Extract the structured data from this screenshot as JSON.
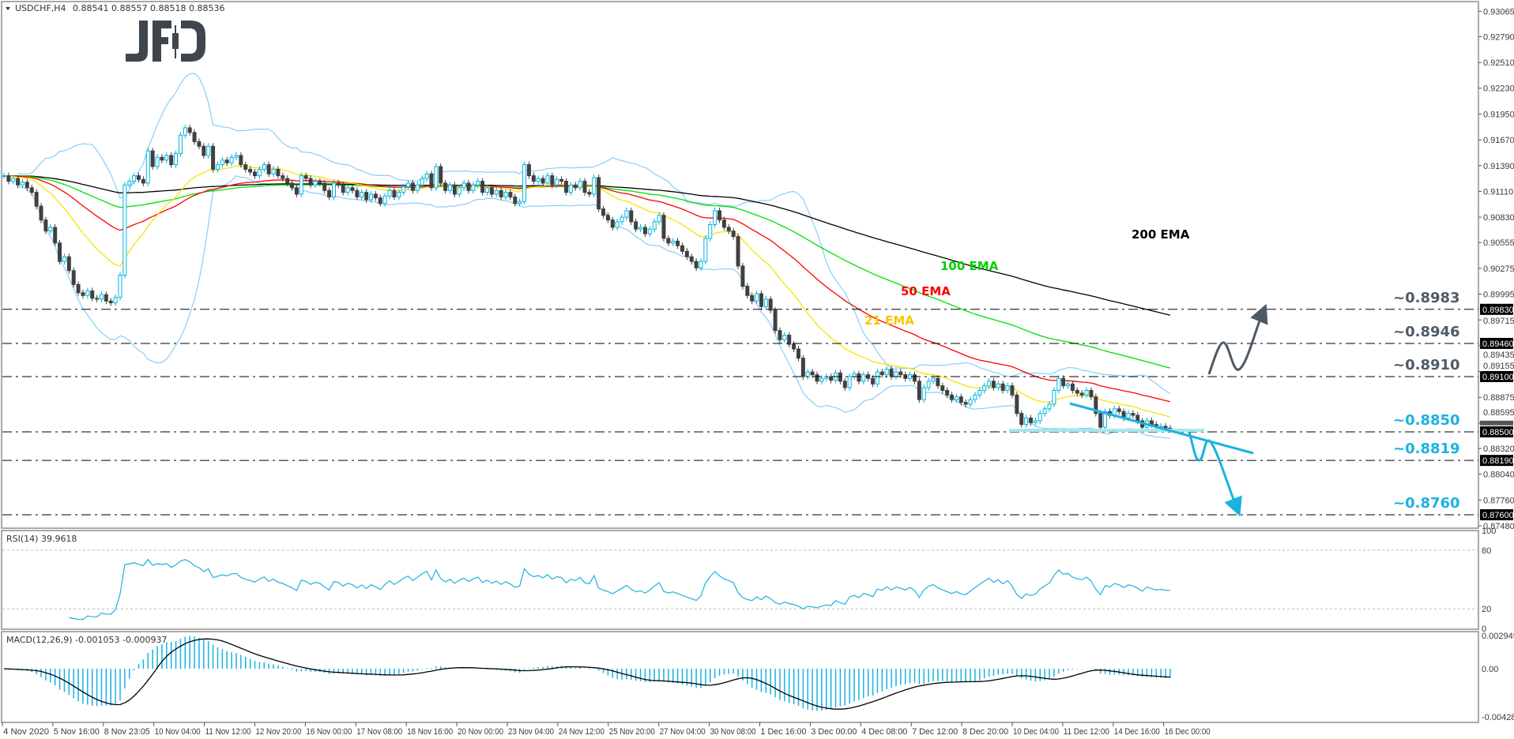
{
  "header": {
    "symbol": "USDCHF,H4",
    "ohlc": "0.88541 0.88557 0.88518 0.88536"
  },
  "logo": "JFD",
  "colors": {
    "bull": "#00b4e0",
    "bear": "#404040",
    "bands": "#87cefa",
    "ema21": "#f5e400",
    "ema50": "#ff0000",
    "ema100": "#00e000",
    "ema200": "#000000",
    "rsi": "#1ab2e0",
    "macd_hist": "#1ab2e0",
    "macd_signal": "#000000",
    "level_up": "#4f5a66",
    "level_down": "#1ab2e0",
    "support_zone": "#a8e6ea"
  },
  "indicators": {
    "rsi_label": "RSI(14) 39.9618",
    "macd_label": "MACD(12,26,9) -0.001053 -0.000937",
    "ema_labels": {
      "ema200": "200 EMA",
      "ema100": "100 EMA",
      "ema50": "50 EMA",
      "ema21": "21 EMA"
    }
  },
  "levels": [
    {
      "price": 0.8983,
      "label": "~0.8983",
      "tag": "0.89830",
      "side": "up"
    },
    {
      "price": 0.8946,
      "label": "~0.8946",
      "tag": "0.89460",
      "side": "up"
    },
    {
      "price": 0.891,
      "label": "~0.8910",
      "tag": "0.89100",
      "side": "up"
    },
    {
      "price": 0.885,
      "label": "~0.8850",
      "tag": "0.88500",
      "side": "down"
    },
    {
      "price": 0.8819,
      "label": "~0.8819",
      "tag": "0.88190",
      "side": "down"
    },
    {
      "price": 0.876,
      "label": "~0.8760",
      "tag": "0.87600",
      "side": "down"
    }
  ],
  "chart_data": {
    "type": "candlestick",
    "symbol": "USDCHF",
    "timeframe": "H4",
    "price_axis": {
      "ticks": [
        "0.93065",
        "0.92790",
        "0.92510",
        "0.92230",
        "0.91950",
        "0.91670",
        "0.91390",
        "0.91110",
        "0.90830",
        "0.90555",
        "0.90275",
        "0.89995",
        "0.89715",
        "0.89435",
        "0.89155",
        "0.88875",
        "0.88595",
        "0.88320",
        "0.88040",
        "0.87760",
        "0.87480"
      ],
      "range": [
        0.8748,
        0.93065
      ]
    },
    "current_price": 0.88536,
    "time_axis": [
      "4 Nov 2020",
      "5 Nov 16:00",
      "8 Nov 23:05",
      "10 Nov 04:00",
      "11 Nov 12:00",
      "12 Nov 20:00",
      "16 Nov 00:00",
      "17 Nov 08:00",
      "18 Nov 16:00",
      "20 Nov 00:00",
      "23 Nov 04:00",
      "24 Nov 12:00",
      "25 Nov 20:00",
      "27 Nov 04:00",
      "30 Nov 08:00",
      "1 Dec 16:00",
      "3 Dec 00:00",
      "4 Dec 08:00",
      "7 Dec 12:00",
      "8 Dec 20:00",
      "10 Dec 04:00",
      "11 Dec 12:00",
      "14 Dec 16:00",
      "16 Dec 00:00"
    ],
    "close": [
      0.9128,
      0.9122,
      0.9125,
      0.9118,
      0.9121,
      0.9115,
      0.911,
      0.9095,
      0.908,
      0.9068,
      0.9072,
      0.9055,
      0.9035,
      0.904,
      0.9025,
      0.901,
      0.9001,
      0.8998,
      0.9003,
      0.8995,
      0.8994,
      0.8999,
      0.8992,
      0.899,
      0.8996,
      0.902,
      0.9118,
      0.9122,
      0.9128,
      0.9124,
      0.912,
      0.9155,
      0.9138,
      0.9148,
      0.9145,
      0.915,
      0.914,
      0.9152,
      0.9172,
      0.918,
      0.9175,
      0.9165,
      0.916,
      0.915,
      0.916,
      0.9135,
      0.914,
      0.9145,
      0.9142,
      0.9148,
      0.915,
      0.914,
      0.9135,
      0.9132,
      0.9128,
      0.9135,
      0.914,
      0.913,
      0.9135,
      0.9128,
      0.9125,
      0.912,
      0.9115,
      0.9108,
      0.9128,
      0.9125,
      0.9118,
      0.9122,
      0.912,
      0.9112,
      0.9105,
      0.912,
      0.9118,
      0.911,
      0.9115,
      0.9112,
      0.9105,
      0.911,
      0.9102,
      0.9108,
      0.9104,
      0.9098,
      0.9106,
      0.9112,
      0.9105,
      0.911,
      0.9116,
      0.912,
      0.9112,
      0.9118,
      0.9125,
      0.913,
      0.9115,
      0.9138,
      0.912,
      0.9112,
      0.9118,
      0.9108,
      0.9115,
      0.912,
      0.9112,
      0.9118,
      0.9122,
      0.911,
      0.9115,
      0.9108,
      0.9112,
      0.9105,
      0.911,
      0.9105,
      0.9098,
      0.91,
      0.914,
      0.9128,
      0.9122,
      0.9125,
      0.912,
      0.9128,
      0.9118,
      0.9124,
      0.9122,
      0.911,
      0.9118,
      0.9115,
      0.9122,
      0.911,
      0.9108,
      0.9126,
      0.9092,
      0.9085,
      0.908,
      0.9072,
      0.9078,
      0.9083,
      0.909,
      0.9078,
      0.907,
      0.9072,
      0.9065,
      0.907,
      0.9078,
      0.9085,
      0.906,
      0.9055,
      0.9057,
      0.9052,
      0.9046,
      0.904,
      0.9035,
      0.9028,
      0.9035,
      0.906,
      0.9075,
      0.909,
      0.908,
      0.9072,
      0.9068,
      0.9062,
      0.903,
      0.9008,
      0.8998,
      0.8992,
      0.9,
      0.8986,
      0.8994,
      0.8982,
      0.896,
      0.895,
      0.8955,
      0.8945,
      0.894,
      0.893,
      0.891,
      0.8915,
      0.8912,
      0.8905,
      0.8908,
      0.891,
      0.8906,
      0.8914,
      0.8905,
      0.8898,
      0.891,
      0.8913,
      0.8905,
      0.8912,
      0.8908,
      0.8902,
      0.8915,
      0.8912,
      0.8918,
      0.891,
      0.8915,
      0.8912,
      0.8908,
      0.8912,
      0.8905,
      0.8885,
      0.8898,
      0.8905,
      0.8908,
      0.89,
      0.8895,
      0.889,
      0.8885,
      0.8888,
      0.8882,
      0.888,
      0.8885,
      0.889,
      0.8895,
      0.89,
      0.8905,
      0.8898,
      0.8902,
      0.8895,
      0.89,
      0.889,
      0.887,
      0.8858,
      0.8865,
      0.886,
      0.8862,
      0.887,
      0.8875,
      0.888,
      0.8895,
      0.8908,
      0.89,
      0.8902,
      0.8895,
      0.8892,
      0.889,
      0.8895,
      0.8888,
      0.887,
      0.8855,
      0.8872,
      0.8868,
      0.8875,
      0.8872,
      0.8865,
      0.887,
      0.8868,
      0.8862,
      0.8855,
      0.8862,
      0.8858,
      0.8855,
      0.8856,
      0.8854,
      0.88536
    ],
    "rsi_axis": {
      "ticks": [
        "100",
        "80",
        "20",
        "0"
      ],
      "levels": [
        80,
        20
      ],
      "range": [
        0,
        100
      ]
    },
    "macd_axis": {
      "ticks": [
        "0.002949",
        "0.00",
        "-0.004288"
      ],
      "range": [
        -0.004288,
        0.002949
      ]
    }
  }
}
